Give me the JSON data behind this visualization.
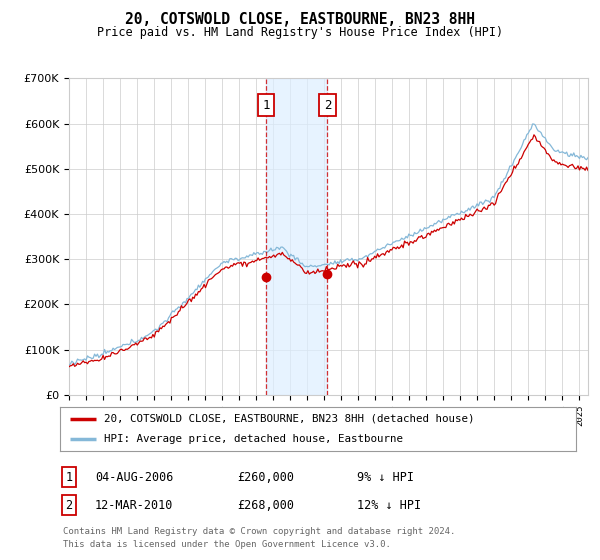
{
  "title": "20, COTSWOLD CLOSE, EASTBOURNE, BN23 8HH",
  "subtitle": "Price paid vs. HM Land Registry's House Price Index (HPI)",
  "background_color": "#ffffff",
  "grid_color": "#cccccc",
  "red_line_color": "#cc0000",
  "blue_line_color": "#85b8d8",
  "shade_color": "#ddeeff",
  "marker1_date_x": 2006.58,
  "marker2_date_x": 2010.19,
  "marker1_price": 260000,
  "marker2_price": 268000,
  "legend_line1": "20, COTSWOLD CLOSE, EASTBOURNE, BN23 8HH (detached house)",
  "legend_line2": "HPI: Average price, detached house, Eastbourne",
  "table_row1": [
    "1",
    "04-AUG-2006",
    "£260,000",
    "9% ↓ HPI"
  ],
  "table_row2": [
    "2",
    "12-MAR-2010",
    "£268,000",
    "12% ↓ HPI"
  ],
  "footnote1": "Contains HM Land Registry data © Crown copyright and database right 2024.",
  "footnote2": "This data is licensed under the Open Government Licence v3.0.",
  "ylim": [
    0,
    700000
  ],
  "xlim_start": 1995.0,
  "xlim_end": 2025.5
}
